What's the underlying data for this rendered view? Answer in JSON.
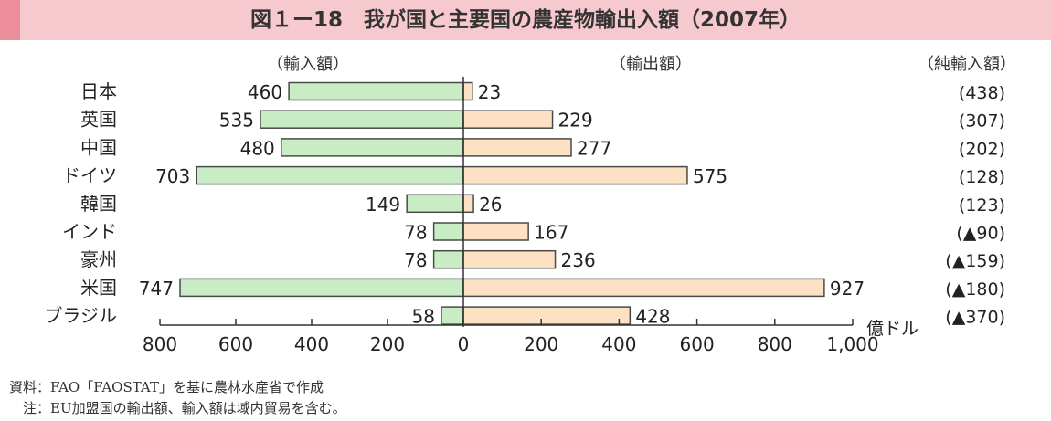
{
  "header": {
    "title": "図１ー18　我が国と主要国の農産物輸出入額（2007年）",
    "colors": {
      "band": "#f6c9cf",
      "accent": "#ec8f9b"
    }
  },
  "chart_data": {
    "type": "bar",
    "orientation": "horizontal-diverging",
    "column_headers": {
      "imports": "（輸入額）",
      "exports": "（輸出額）",
      "net": "（純輸入額）"
    },
    "unit": "億ドル",
    "categories": [
      "日本",
      "英国",
      "中国",
      "ドイツ",
      "韓国",
      "インド",
      "豪州",
      "米国",
      "ブラジル"
    ],
    "series": [
      {
        "key": "imports",
        "values": [
          460,
          535,
          480,
          703,
          149,
          78,
          78,
          747,
          58
        ],
        "color": "#c8ecc4",
        "stroke": "#4a4a4a"
      },
      {
        "key": "exports",
        "values": [
          23,
          229,
          277,
          575,
          26,
          167,
          236,
          927,
          428
        ],
        "color": "#fde1c5",
        "stroke": "#4a4a4a"
      }
    ],
    "net_imports_labels": [
      "(438)",
      "(307)",
      "(202)",
      "(128)",
      "(123)",
      "(▲90)",
      "(▲159)",
      "(▲180)",
      "(▲370)"
    ],
    "x_ticks_left": [
      "800",
      "600",
      "400",
      "200"
    ],
    "x_ticks_right": [
      "0",
      "200",
      "400",
      "600",
      "800",
      "1,000"
    ],
    "x_left_range": [
      0,
      800
    ],
    "x_right_range": [
      0,
      1000
    ]
  },
  "notes": {
    "source": "資料：FAO「FAOSTAT」を基に農林水産省で作成",
    "note": "　注：EU加盟国の輸出額、輸入額は域内貿易を含む。"
  }
}
